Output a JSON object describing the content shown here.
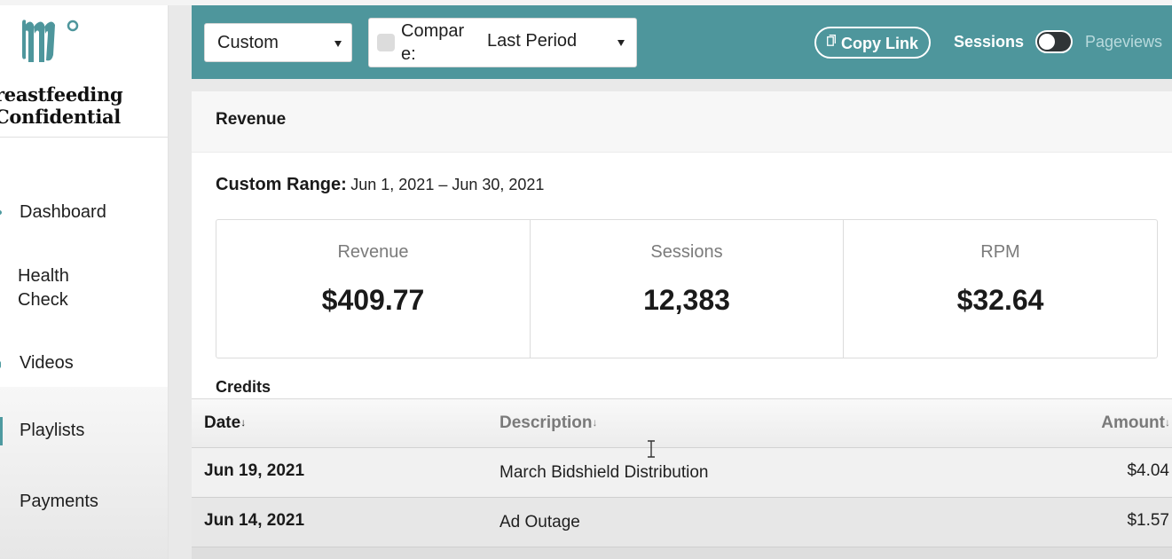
{
  "sidebar": {
    "brand": {
      "line1": "reastfeeding",
      "line2": "Confidential"
    },
    "items": [
      {
        "id": "dashboard",
        "label": "Dashboard"
      },
      {
        "id": "health",
        "label_line1": "Health",
        "label_line2": "Check"
      },
      {
        "id": "videos",
        "label": "Videos"
      },
      {
        "id": "playlists",
        "label": "Playlists"
      },
      {
        "id": "payments",
        "label": "Payments"
      }
    ]
  },
  "header": {
    "range_select": "Custom",
    "compare_label": "Compare:",
    "compare_select": "Last Period",
    "copy_link": "Copy Link",
    "sessions_label": "Sessions",
    "pageviews_label": "Pageviews",
    "color": "#4e969c"
  },
  "main": {
    "title": "Revenue",
    "range_label": "Custom Range:",
    "range_value": "Jun 1, 2021 – Jun 30, 2021",
    "stats": [
      {
        "label": "Revenue",
        "value": "$409.77"
      },
      {
        "label": "Sessions",
        "value": "12,383"
      },
      {
        "label": "RPM",
        "value": "$32.64"
      }
    ],
    "credits": {
      "title": "Credits",
      "columns": {
        "date": "Date",
        "description": "Description",
        "amount": "Amount",
        "sort_arrow": "↓"
      },
      "rows": [
        {
          "date": "Jun 19, 2021",
          "description": "March Bidshield Distribution",
          "amount": "$4.04"
        },
        {
          "date": "Jun 14, 2021",
          "description": "Ad Outage",
          "amount": "$1.57"
        }
      ]
    }
  }
}
